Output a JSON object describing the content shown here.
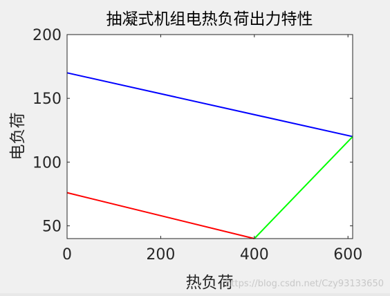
{
  "chart_data": {
    "type": "line",
    "title": "抽凝式机组电热负荷出力特性",
    "xlabel": "热负荷",
    "ylabel": "电负荷",
    "xlim": [
      0,
      610
    ],
    "ylim": [
      40,
      200
    ],
    "xticks": [
      "0",
      "200",
      "400",
      "600"
    ],
    "yticks": [
      "50",
      "100",
      "150",
      "200"
    ],
    "grid": false,
    "series": [
      {
        "color": "#0000ff",
        "x": [
          0,
          610
        ],
        "y": [
          170,
          120
        ]
      },
      {
        "color": "#ff0000",
        "x": [
          0,
          400
        ],
        "y": [
          76,
          40
        ]
      },
      {
        "color": "#00ff00",
        "x": [
          400,
          610
        ],
        "y": [
          40,
          120
        ]
      }
    ]
  },
  "watermark": "https://blog.csdn.net/Czy93133650",
  "colors": {
    "figure_background": "#f0f0f0",
    "axes_background": "#ffffff",
    "axis_color": "#262626"
  }
}
